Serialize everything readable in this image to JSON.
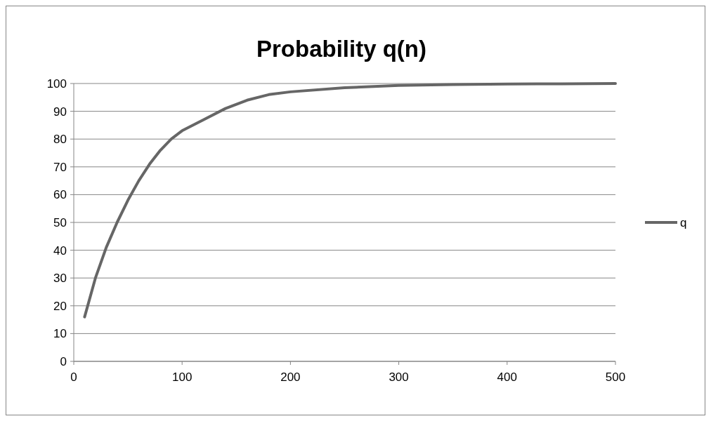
{
  "chart_data": {
    "type": "line",
    "title": "Probability q(n)",
    "x": [
      10,
      20,
      30,
      40,
      50,
      60,
      70,
      80,
      90,
      100,
      120,
      140,
      160,
      180,
      200,
      250,
      300,
      350,
      400,
      450,
      500
    ],
    "series": [
      {
        "name": "q",
        "color": "#666666",
        "values": [
          16,
          30,
          41,
          50,
          58,
          65,
          71,
          76,
          80,
          83,
          87,
          91,
          94,
          96,
          97,
          98.5,
          99.3,
          99.6,
          99.8,
          99.9,
          100
        ]
      }
    ],
    "xlim": [
      0,
      500
    ],
    "xticks": [
      0,
      100,
      200,
      300,
      400,
      500
    ],
    "ylim": [
      0,
      100
    ],
    "yticks": [
      0,
      10,
      20,
      30,
      40,
      50,
      60,
      70,
      80,
      90,
      100
    ],
    "grid": "y",
    "legend": "right",
    "marker": "none",
    "line_style": "solid"
  }
}
